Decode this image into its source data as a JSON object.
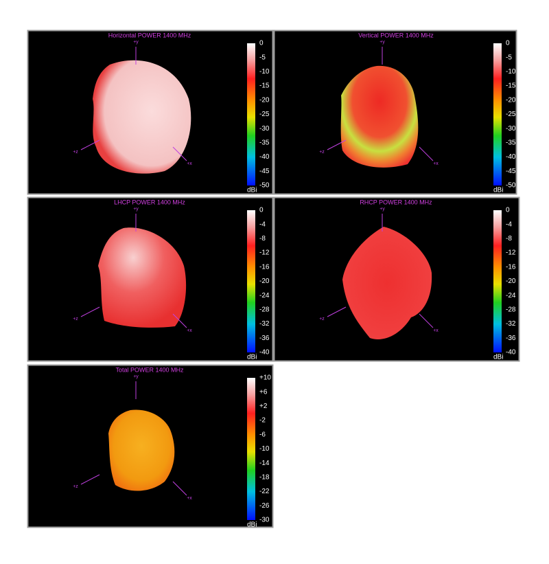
{
  "panels": [
    {
      "title": "Horizontal POWER 1400  MHz",
      "ticks": [
        "0",
        "-5",
        "-10",
        "-15",
        "-20",
        "-25",
        "-30",
        "-35",
        "-40",
        "-45",
        "-50"
      ],
      "unit": "dBi",
      "axes": [
        "+y",
        "+z",
        "+x"
      ]
    },
    {
      "title": "Vertical POWER 1400  MHz",
      "ticks": [
        "0",
        "-5",
        "-10",
        "-15",
        "-20",
        "-25",
        "-30",
        "-35",
        "-40",
        "-45",
        "-50"
      ],
      "unit": "dBi",
      "axes": [
        "+y",
        "+z",
        "+x"
      ]
    },
    {
      "title": "LHCP POWER 1400  MHz",
      "ticks": [
        "0",
        "-4",
        "-8",
        "-12",
        "-16",
        "-20",
        "-24",
        "-28",
        "-32",
        "-36",
        "-40"
      ],
      "unit": "dBi",
      "axes": [
        "+y",
        "+z",
        "+x"
      ]
    },
    {
      "title": "RHCP POWER 1400  MHz",
      "ticks": [
        "0",
        "-4",
        "-8",
        "-12",
        "-16",
        "-20",
        "-24",
        "-28",
        "-32",
        "-36",
        "-40"
      ],
      "unit": "dBi",
      "axes": [
        "+y",
        "+z",
        "+x"
      ]
    },
    {
      "title": "Total POWER 1400  MHz",
      "ticks": [
        "+10",
        "+6",
        "+2",
        "-2",
        "-6",
        "-10",
        "-14",
        "-18",
        "-22",
        "-26",
        "-30"
      ],
      "unit": "dBi",
      "axes": [
        "+y",
        "+z",
        "+x"
      ]
    }
  ]
}
